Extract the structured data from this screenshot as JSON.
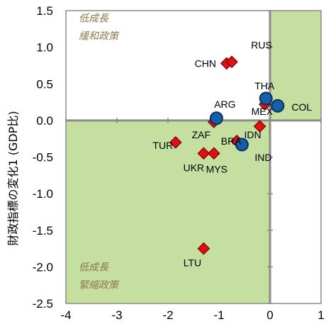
{
  "chart_data": {
    "type": "scatter",
    "title": "",
    "xlabel": "",
    "ylabel": "財政指標の変化1 (GDP比)",
    "xlim": [
      -4,
      1
    ],
    "ylim": [
      -2.5,
      1.5
    ],
    "x_ticks": [
      "-4",
      "-3",
      "-2",
      "-1",
      "0",
      "1"
    ],
    "y_ticks": [
      "1.5",
      "1.0",
      "0.5",
      "0.0",
      "-0.5",
      "-1.0",
      "-1.5",
      "-2.0",
      "-2.5"
    ],
    "grid": false,
    "legend": "none",
    "shaded_regions": [
      {
        "x": [
          0,
          1
        ],
        "y": [
          0,
          1.5
        ]
      },
      {
        "x": [
          -4,
          0
        ],
        "y": [
          -2.5,
          0
        ]
      }
    ],
    "annotations": [
      {
        "text": "低成長",
        "line2": "緩和政策",
        "x": -3.75,
        "y": 1.35
      },
      {
        "text": "低成長",
        "line2": "緊縮政策",
        "x": -3.75,
        "y": -2.05
      }
    ],
    "series": [
      {
        "marker": "diamond",
        "color": "#dd1111",
        "points": [
          {
            "label": "CHN",
            "x": -0.85,
            "y": 0.78
          },
          {
            "label": "RUS",
            "x": -0.75,
            "y": 0.8
          },
          {
            "label": "MEX",
            "x": -0.1,
            "y": 0.22
          },
          {
            "label": "ZAF",
            "x": -1.1,
            "y": -0.02
          },
          {
            "label": "IDN",
            "x": -0.2,
            "y": -0.08
          },
          {
            "label": "BRA",
            "x": -0.65,
            "y": -0.28
          },
          {
            "label": "TUR",
            "x": -1.85,
            "y": -0.3
          },
          {
            "label": "UKR",
            "x": -1.3,
            "y": -0.45
          },
          {
            "label": "MYS",
            "x": -1.1,
            "y": -0.45
          },
          {
            "label": "LTU",
            "x": -1.3,
            "y": -1.75
          }
        ]
      },
      {
        "marker": "circle",
        "color": "#1560a8",
        "points": [
          {
            "label": "THA",
            "x": -0.08,
            "y": 0.3
          },
          {
            "label": "COL",
            "x": 0.15,
            "y": 0.2
          },
          {
            "label": "ARG",
            "x": -1.05,
            "y": 0.03
          },
          {
            "label": "IND",
            "x": -0.55,
            "y": -0.33
          }
        ]
      }
    ]
  }
}
